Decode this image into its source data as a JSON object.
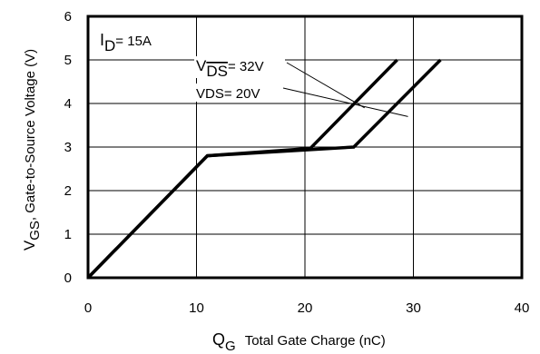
{
  "chart_data": {
    "type": "line",
    "title": "",
    "xlabel_main": "Q",
    "xlabel_sub": "G",
    "xlabel_rest": "Total Gate Charge (nC)",
    "ylabel_main": "V",
    "ylabel_sub": "GS",
    "ylabel_rest": ", Gate-to-Source Voltage (V)",
    "xlim": [
      0,
      40
    ],
    "ylim": [
      0,
      6
    ],
    "xticks": [
      0,
      10,
      20,
      30,
      40
    ],
    "yticks": [
      0,
      1,
      2,
      3,
      4,
      5,
      6
    ],
    "grid": true,
    "series": [
      {
        "x": [
          0,
          11,
          20.5,
          28.5
        ],
        "y": [
          0,
          2.8,
          2.97,
          5
        ]
      },
      {
        "x": [
          0,
          11,
          24.5,
          32.5
        ],
        "y": [
          0,
          2.8,
          3.0,
          5
        ]
      }
    ],
    "annotations": {
      "id_label_main": "I",
      "id_label_sub": "D",
      "id_label_rest": "= 15A",
      "vds32_main": "V",
      "vds32_sub": "DS",
      "vds32_rest": "= 32V",
      "vds20_text": "VDS= 20V"
    }
  }
}
